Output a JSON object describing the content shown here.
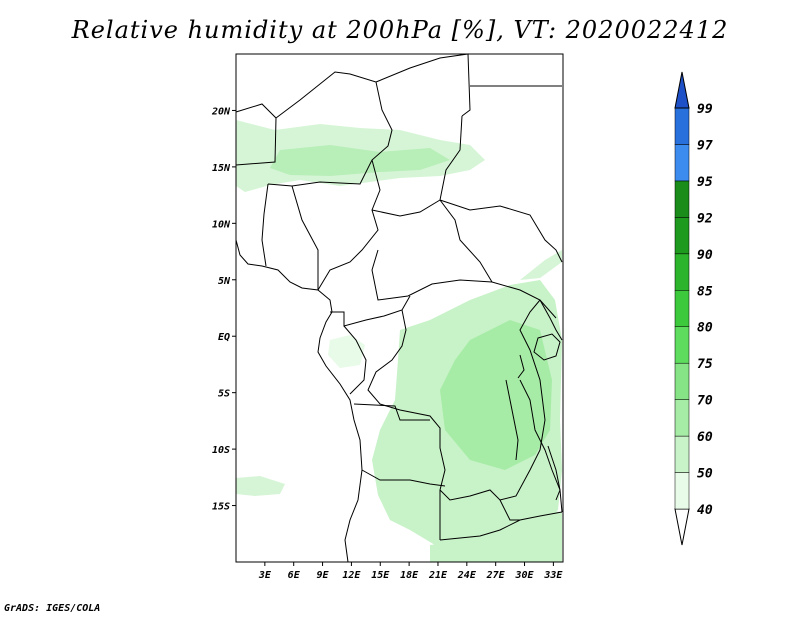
{
  "title": "Relative humidity at 200hPa [%], VT: 2020022412",
  "credit": "GrADS: IGES/COLA",
  "map": {
    "lon_range": [
      0,
      34
    ],
    "lat_range": [
      -20,
      25
    ],
    "lon_ticks": [
      "3E",
      "6E",
      "9E",
      "12E",
      "15E",
      "18E",
      "21E",
      "24E",
      "27E",
      "30E",
      "33E"
    ],
    "lat_ticks": [
      "20N",
      "15N",
      "10N",
      "5N",
      "EQ",
      "5S",
      "10S",
      "15S"
    ]
  },
  "colorbar": {
    "levels": [
      "99",
      "97",
      "95",
      "92",
      "90",
      "85",
      "80",
      "75",
      "70",
      "60",
      "50",
      "40"
    ],
    "colors": [
      "#ffffff",
      "#e8fae8",
      "#c8f2c8",
      "#a6eca6",
      "#86e486",
      "#5edc5e",
      "#3cca3c",
      "#2cb42c",
      "#1e9a1e",
      "#1a8c1a",
      "#3c8cf0",
      "#2870dc",
      "#1e50c8"
    ]
  }
}
